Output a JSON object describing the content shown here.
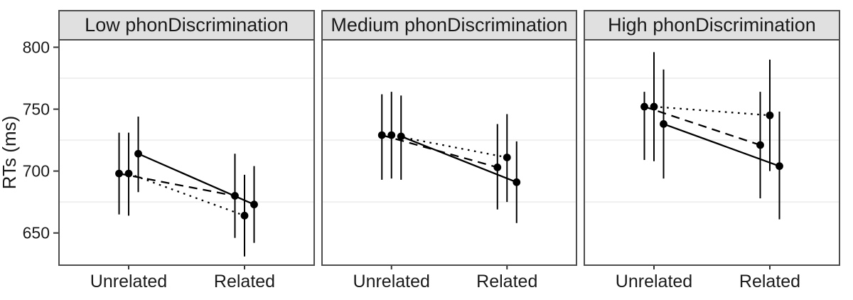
{
  "chart_data": {
    "type": "line",
    "faceted": true,
    "title": "",
    "ylabel": "RTs (ms)",
    "xlabel": "",
    "x_categories": [
      "Unrelated",
      "Related"
    ],
    "y_ticks": [
      800,
      750,
      700,
      650
    ],
    "y_minor_gridlines": [
      775,
      725,
      675
    ],
    "ylim": [
      624,
      806
    ],
    "grid": "horizontal minor gridlines only",
    "legend": "none",
    "error_bars": "vertical lines without caps",
    "point_style": "filled black circles, dodged within category",
    "facets": [
      {
        "label": "Low phonDiscrimination",
        "series": [
          {
            "linetype": "dashed",
            "dodge": -1,
            "values": [
              698,
              680
            ],
            "ci_low": [
              665,
              646
            ],
            "ci_high": [
              731,
              714
            ]
          },
          {
            "linetype": "dotted",
            "dodge": 0,
            "values": [
              698,
              664
            ],
            "ci_low": [
              664,
              631
            ],
            "ci_high": [
              731,
              697
            ]
          },
          {
            "linetype": "solid",
            "dodge": 1,
            "values": [
              714,
              673
            ],
            "ci_low": [
              683,
              642
            ],
            "ci_high": [
              744,
              704
            ]
          }
        ]
      },
      {
        "label": "Medium phonDiscrimination",
        "series": [
          {
            "linetype": "dashed",
            "dodge": -1,
            "values": [
              729,
              703
            ],
            "ci_low": [
              693,
              669
            ],
            "ci_high": [
              762,
              738
            ]
          },
          {
            "linetype": "dotted",
            "dodge": 0,
            "values": [
              729,
              711
            ],
            "ci_low": [
              694,
              675
            ],
            "ci_high": [
              764,
              746
            ]
          },
          {
            "linetype": "solid",
            "dodge": 1,
            "values": [
              728,
              691
            ],
            "ci_low": [
              693,
              658
            ],
            "ci_high": [
              761,
              724
            ]
          }
        ]
      },
      {
        "label": "High phonDiscrimination",
        "series": [
          {
            "linetype": "dashed",
            "dodge": -1,
            "values": [
              752,
              721
            ],
            "ci_low": [
              709,
              678
            ],
            "ci_high": [
              764,
              764
            ]
          },
          {
            "linetype": "dotted",
            "dodge": 0,
            "values": [
              752,
              745
            ],
            "ci_low": [
              708,
              700
            ],
            "ci_high": [
              796,
              790
            ]
          },
          {
            "linetype": "solid",
            "dodge": 1,
            "values": [
              738,
              704
            ],
            "ci_low": [
              694,
              661
            ],
            "ci_high": [
              782,
              748
            ]
          }
        ]
      }
    ]
  },
  "colors": {
    "foreground": "#000000",
    "axis_text": "#1a1a1a",
    "strip_fill": "#e0e0e0",
    "panel_border": "#4d4d4d",
    "tick": "#333333",
    "gridline": "#f0f0f0",
    "background": "#ffffff"
  }
}
